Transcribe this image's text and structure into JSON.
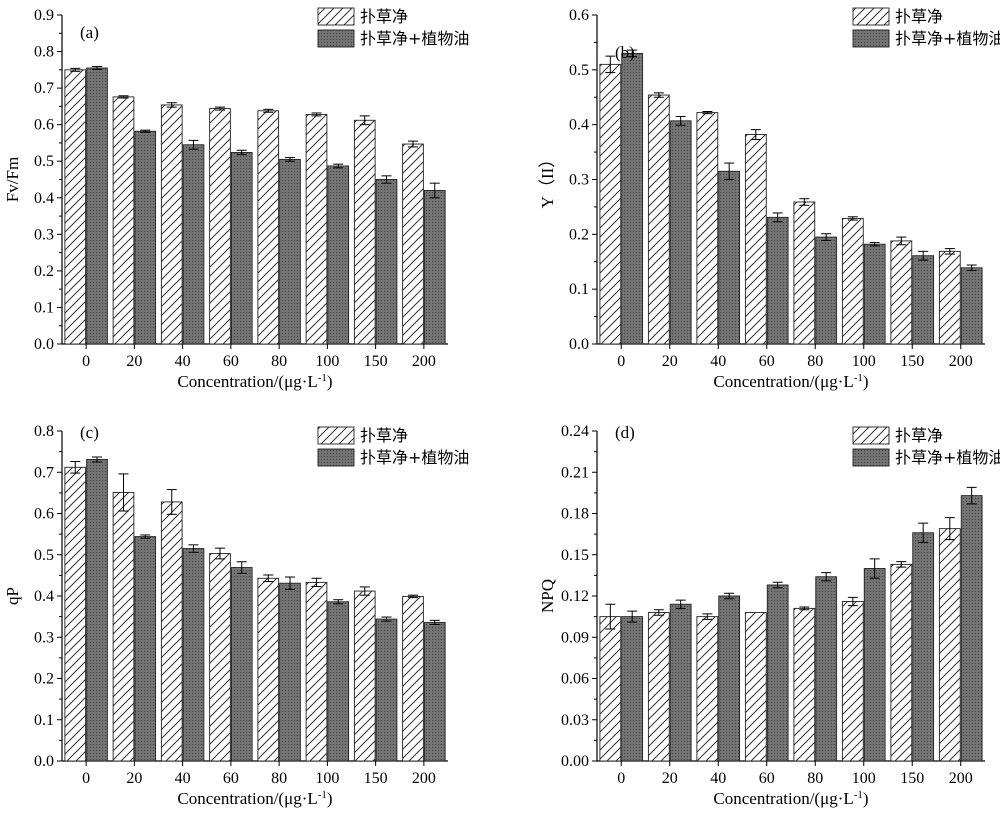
{
  "colors": {
    "hatch_fill": "#ffffff",
    "hatch_line": "#333333",
    "dark_bar": "#6e6e6e",
    "axis": "#000000"
  },
  "legend": [
    "扑草净",
    "扑草净+植物油"
  ],
  "chart_data": [
    {
      "type": "bar",
      "panel": "(a)",
      "xlabel": "Concentration/(μg·L",
      "xlabel_sup": "-1",
      "xlabel_tail": ")",
      "ylabel": "Fv/Fm",
      "ylim": [
        0,
        0.9
      ],
      "yticks": [
        "0.0",
        "0.1",
        "0.2",
        "0.3",
        "0.4",
        "0.5",
        "0.6",
        "0.7",
        "0.8",
        "0.9"
      ],
      "categories": [
        "0",
        "20",
        "40",
        "60",
        "80",
        "100",
        "150",
        "200"
      ],
      "series": [
        {
          "name": "扑草净",
          "values": [
            0.75,
            0.676,
            0.654,
            0.644,
            0.638,
            0.628,
            0.612,
            0.547
          ],
          "errors": [
            0.004,
            0.003,
            0.006,
            0.004,
            0.004,
            0.004,
            0.012,
            0.008
          ]
        },
        {
          "name": "扑草净+植物油",
          "values": [
            0.755,
            0.582,
            0.545,
            0.524,
            0.505,
            0.487,
            0.45,
            0.42
          ],
          "errors": [
            0.004,
            0.003,
            0.012,
            0.006,
            0.005,
            0.005,
            0.01,
            0.02
          ]
        }
      ]
    },
    {
      "type": "bar",
      "panel": "(b)",
      "xlabel": "Concentration/(μg·L",
      "xlabel_sup": "-1",
      "xlabel_tail": ")",
      "ylabel": "Y（II）",
      "ylim": [
        0,
        0.6
      ],
      "yticks": [
        "0.0",
        "0.1",
        "0.2",
        "0.3",
        "0.4",
        "0.5",
        "0.6"
      ],
      "categories": [
        "0",
        "20",
        "40",
        "60",
        "80",
        "100",
        "150",
        "200"
      ],
      "series": [
        {
          "name": "扑草净",
          "values": [
            0.51,
            0.454,
            0.422,
            0.382,
            0.259,
            0.229,
            0.188,
            0.169
          ],
          "errors": [
            0.015,
            0.004,
            0.002,
            0.009,
            0.006,
            0.003,
            0.007,
            0.005
          ]
        },
        {
          "name": "扑草净+植物油",
          "values": [
            0.53,
            0.407,
            0.315,
            0.231,
            0.195,
            0.182,
            0.161,
            0.139
          ],
          "errors": [
            0.006,
            0.008,
            0.015,
            0.008,
            0.006,
            0.003,
            0.008,
            0.005
          ]
        }
      ]
    },
    {
      "type": "bar",
      "panel": "(c)",
      "xlabel": "Concentration/(μg·L",
      "xlabel_sup": "-1",
      "xlabel_tail": ")",
      "ylabel": "qP",
      "ylim": [
        0,
        0.8
      ],
      "yticks": [
        "0.0",
        "0.1",
        "0.2",
        "0.3",
        "0.4",
        "0.5",
        "0.6",
        "0.7",
        "0.8"
      ],
      "categories": [
        "0",
        "20",
        "40",
        "60",
        "80",
        "100",
        "150",
        "200"
      ],
      "series": [
        {
          "name": "扑草净",
          "values": [
            0.712,
            0.651,
            0.628,
            0.503,
            0.443,
            0.433,
            0.412,
            0.399
          ],
          "errors": [
            0.014,
            0.045,
            0.03,
            0.013,
            0.008,
            0.01,
            0.01,
            0.003
          ]
        },
        {
          "name": "扑草净+植物油",
          "values": [
            0.731,
            0.544,
            0.515,
            0.469,
            0.431,
            0.386,
            0.344,
            0.336
          ],
          "errors": [
            0.006,
            0.004,
            0.009,
            0.014,
            0.015,
            0.005,
            0.005,
            0.005
          ]
        }
      ]
    },
    {
      "type": "bar",
      "panel": "(d)",
      "xlabel": "Concentration/(μg·L",
      "xlabel_sup": "-1",
      "xlabel_tail": ")",
      "ylabel": "NPQ",
      "ylim": [
        0,
        0.24
      ],
      "yticks": [
        "0.00",
        "0.03",
        "0.06",
        "0.09",
        "0.12",
        "0.15",
        "0.18",
        "0.21",
        "0.24"
      ],
      "categories": [
        "0",
        "20",
        "40",
        "60",
        "80",
        "100",
        "150",
        "200"
      ],
      "series": [
        {
          "name": "扑草净",
          "values": [
            0.105,
            0.108,
            0.105,
            0.108,
            0.111,
            0.116,
            0.143,
            0.169
          ],
          "errors": [
            0.009,
            0.002,
            0.002,
            0.0,
            0.001,
            0.003,
            0.002,
            0.008
          ]
        },
        {
          "name": "扑草净+植物油",
          "values": [
            0.105,
            0.114,
            0.12,
            0.128,
            0.134,
            0.14,
            0.166,
            0.193
          ],
          "errors": [
            0.004,
            0.003,
            0.002,
            0.002,
            0.003,
            0.007,
            0.007,
            0.006
          ]
        }
      ]
    }
  ]
}
